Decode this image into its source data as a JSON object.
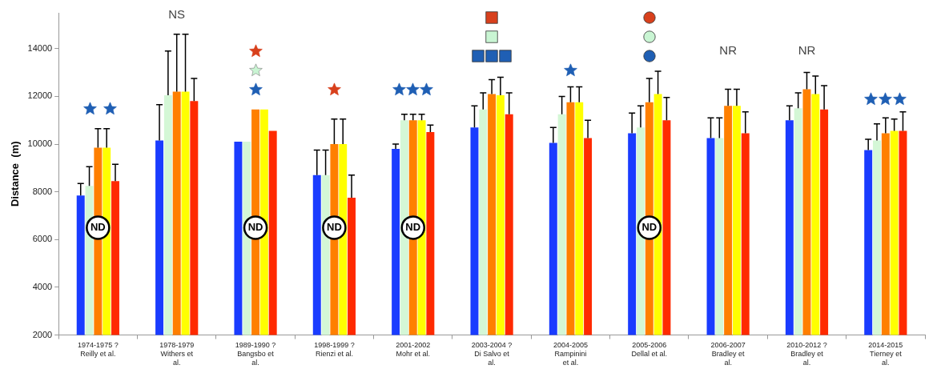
{
  "chart_data": {
    "type": "bar",
    "ylabel": "Distance  (m)",
    "categories": [
      "1974-1975 ?\nReilly et al.",
      "1978-1979\nWithers et\nal.",
      "1989-1990 ?\nBangsbo et\nal.",
      "1998-1999 ?\nRienzi et al.",
      "2001-2002\nMohr et al.",
      "2003-2004 ?\nDi Salvo et\nal.",
      "2004-2005\nRampinini\net al.",
      "2005-2006\nDellal et al.",
      "2006-2007\nBradley et\nal.",
      "2010-2012 ?\nBradley et\nal.",
      "2014-2015\nTierney et\nal."
    ],
    "series": [
      {
        "color": "#1a3cff",
        "values": [
          7850,
          10150,
          10100,
          8700,
          9800,
          10700,
          10050,
          10450,
          10250,
          11000,
          9750
        ],
        "errors": [
          [
            7850,
            8350
          ],
          [
            10150,
            11650
          ],
          null,
          [
            8700,
            9750
          ],
          [
            9800,
            10000
          ],
          [
            10700,
            11600
          ],
          [
            10050,
            10700
          ],
          [
            10450,
            11300
          ],
          [
            10250,
            11100
          ],
          [
            11000,
            11600
          ],
          [
            9750,
            10200
          ]
        ]
      },
      {
        "color": "#d4f7d6",
        "values": [
          8250,
          12050,
          10100,
          8700,
          11000,
          11450,
          11250,
          10700,
          10250,
          11500,
          10150
        ],
        "errors": [
          [
            8250,
            9050
          ],
          [
            12050,
            13900
          ],
          null,
          [
            8700,
            9750
          ],
          [
            11000,
            11250
          ],
          [
            11450,
            12150
          ],
          [
            11250,
            12000
          ],
          [
            10700,
            11600
          ],
          [
            10250,
            11100
          ],
          [
            11500,
            12150
          ],
          [
            10150,
            10850
          ]
        ]
      },
      {
        "color": "#ff7f00",
        "values": [
          9850,
          12200,
          11450,
          10000,
          11000,
          12100,
          11750,
          11750,
          11600,
          12300,
          10450
        ],
        "errors": [
          [
            9850,
            10650
          ],
          [
            12200,
            14600
          ],
          null,
          [
            10000,
            11050
          ],
          [
            11000,
            11250
          ],
          [
            12100,
            12700
          ],
          [
            11750,
            12400
          ],
          [
            11750,
            12750
          ],
          [
            11600,
            12300
          ],
          [
            12300,
            13000
          ],
          [
            10450,
            11100
          ]
        ]
      },
      {
        "color": "#ffff00",
        "values": [
          9850,
          12200,
          11450,
          10000,
          11000,
          12050,
          11750,
          12100,
          11600,
          12100,
          10550
        ],
        "errors": [
          [
            9850,
            10650
          ],
          [
            12200,
            14600
          ],
          null,
          [
            10000,
            11050
          ],
          [
            11000,
            11250
          ],
          [
            12050,
            12800
          ],
          [
            11750,
            12400
          ],
          [
            12100,
            13050
          ],
          [
            11600,
            12300
          ],
          [
            12100,
            12850
          ],
          [
            10550,
            11050
          ]
        ]
      },
      {
        "color": "#ff2a00",
        "values": [
          8450,
          11800,
          10550,
          7750,
          10500,
          11250,
          10250,
          11000,
          10450,
          11450,
          10550
        ],
        "errors": [
          [
            8450,
            9150
          ],
          [
            11800,
            12750
          ],
          null,
          [
            7750,
            8700
          ],
          [
            10500,
            10800
          ],
          [
            11250,
            12150
          ],
          [
            10250,
            11000
          ],
          [
            11000,
            11950
          ],
          [
            10450,
            11350
          ],
          [
            11450,
            12450
          ],
          [
            10550,
            11350
          ]
        ]
      }
    ],
    "ylim": [
      2000,
      15500
    ],
    "yticks": [
      2000,
      4000,
      6000,
      8000,
      10000,
      12000,
      14000
    ],
    "grid": false,
    "legend": false,
    "annotations": [
      {
        "text": "ND",
        "x": "1974-1975 ?\nReilly et al.",
        "y": 6500
      },
      "NS",
      {
        "text": "ND",
        "x": "1989-1990 ?\nBangsbo et\nal.",
        "y": 6500
      },
      {
        "text": "ND",
        "x": "1998-1999 ?\nRienzi et al.",
        "y": 6500
      },
      {
        "text": "ND",
        "x": "2001-2002\nMohr et al.",
        "y": 6500
      },
      {
        "text": "ND",
        "x": "2005-2006\nDellal et al.",
        "y": 6500
      },
      "NR",
      "NR"
    ]
  }
}
